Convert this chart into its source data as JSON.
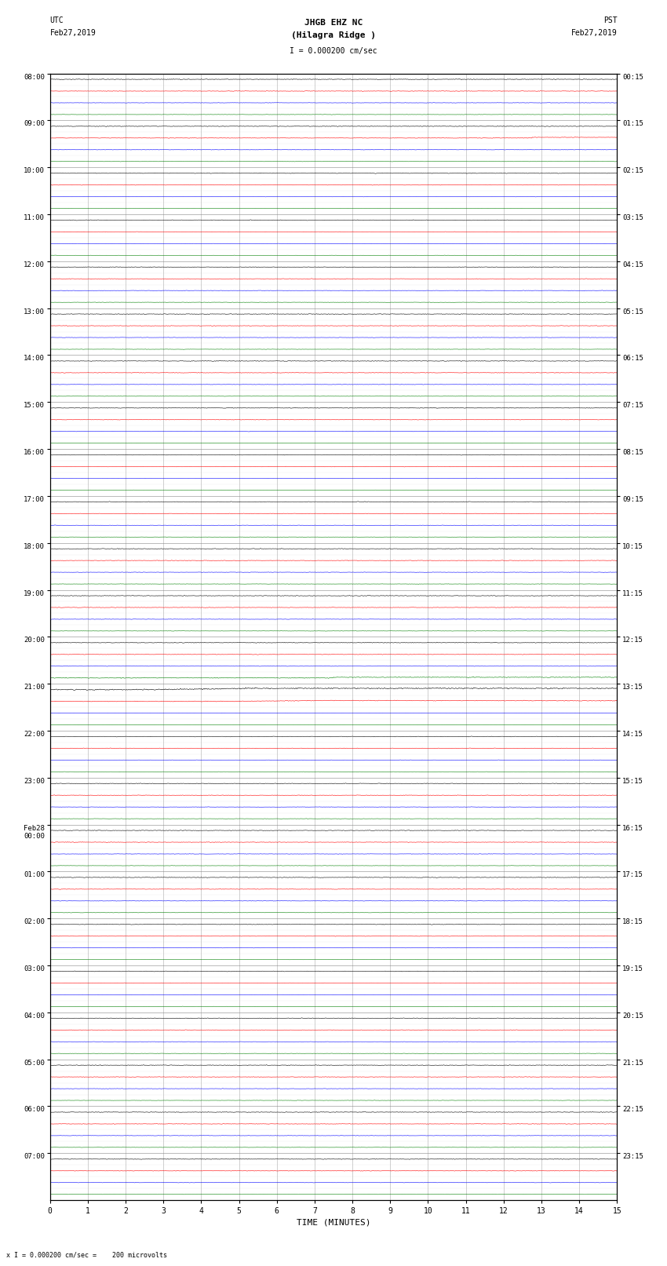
{
  "title_line1": "JHGB EHZ NC",
  "title_line2": "(Hilagra Ridge )",
  "scale_text": "I = 0.000200 cm/sec",
  "utc_label": "UTC",
  "utc_date": "Feb27,2019",
  "pst_label": "PST",
  "pst_date": "Feb27,2019",
  "bottom_note": "x I = 0.000200 cm/sec =    200 microvolts",
  "xlabel": "TIME (MINUTES)",
  "left_times": [
    "08:00",
    "09:00",
    "10:00",
    "11:00",
    "12:00",
    "13:00",
    "14:00",
    "15:00",
    "16:00",
    "17:00",
    "18:00",
    "19:00",
    "20:00",
    "21:00",
    "22:00",
    "23:00",
    "Feb28\n00:00",
    "01:00",
    "02:00",
    "03:00",
    "04:00",
    "05:00",
    "06:00",
    "07:00"
  ],
  "right_times": [
    "00:15",
    "01:15",
    "02:15",
    "03:15",
    "04:15",
    "05:15",
    "06:15",
    "07:15",
    "08:15",
    "09:15",
    "10:15",
    "11:15",
    "12:15",
    "13:15",
    "14:15",
    "15:15",
    "16:15",
    "17:15",
    "18:15",
    "19:15",
    "20:15",
    "21:15",
    "22:15",
    "23:15"
  ],
  "num_row_groups": 24,
  "traces_per_group": 4,
  "trace_colors": [
    "black",
    "red",
    "blue",
    "green"
  ],
  "bg_color": "white",
  "grid_color": "#888888",
  "xlim": [
    0,
    15
  ],
  "xticks": [
    0,
    1,
    2,
    3,
    4,
    5,
    6,
    7,
    8,
    9,
    10,
    11,
    12,
    13,
    14,
    15
  ],
  "fig_width": 8.5,
  "fig_height": 16.13,
  "noise_scale": 0.018,
  "special_event_group": 13,
  "special_event_group2": 12
}
